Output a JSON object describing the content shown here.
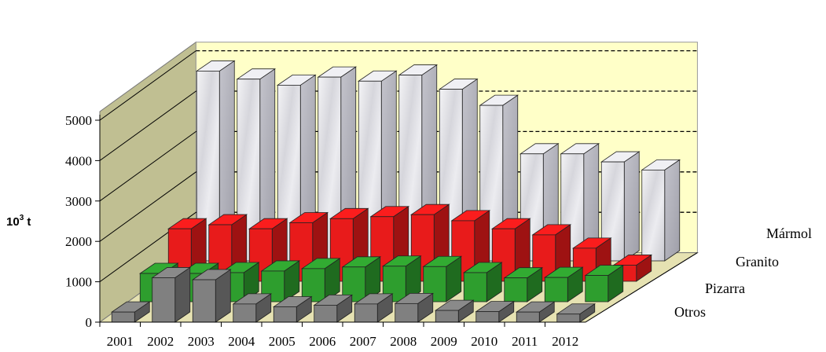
{
  "chart_data": {
    "type": "bar",
    "subtype": "3d-column",
    "ylabel_main": "10",
    "ylabel_sup": "3",
    "ylabel_unit": " t",
    "ylim": [
      0,
      5000
    ],
    "yticks": [
      "0",
      "1000",
      "2000",
      "3000",
      "4000",
      "5000"
    ],
    "categories": [
      "2001",
      "2002",
      "2003",
      "2004",
      "2005",
      "2006",
      "2007",
      "2008",
      "2009",
      "2010",
      "2011",
      "2012"
    ],
    "series": [
      {
        "name": "Otros",
        "color": "#808080",
        "values": [
          250,
          1100,
          1050,
          450,
          380,
          420,
          450,
          460,
          290,
          260,
          250,
          200
        ]
      },
      {
        "name": "Pizarra",
        "color": "#2E9E2E",
        "values": [
          700,
          700,
          720,
          760,
          820,
          860,
          880,
          870,
          720,
          590,
          600,
          650
        ]
      },
      {
        "name": "Granito",
        "color": "#E81B1B",
        "values": [
          1300,
          1400,
          1300,
          1450,
          1550,
          1600,
          1650,
          1500,
          1300,
          1150,
          820,
          400
        ]
      },
      {
        "name": "Mármol",
        "color": "#DDDDE2",
        "values": [
          4700,
          4500,
          4350,
          4550,
          4450,
          4600,
          4250,
          3850,
          2650,
          2650,
          2450,
          2250
        ]
      }
    ],
    "grid": true,
    "background": "#FFFFC8",
    "floor": "#E6E2B2",
    "wall_side": "#C0BF92"
  }
}
